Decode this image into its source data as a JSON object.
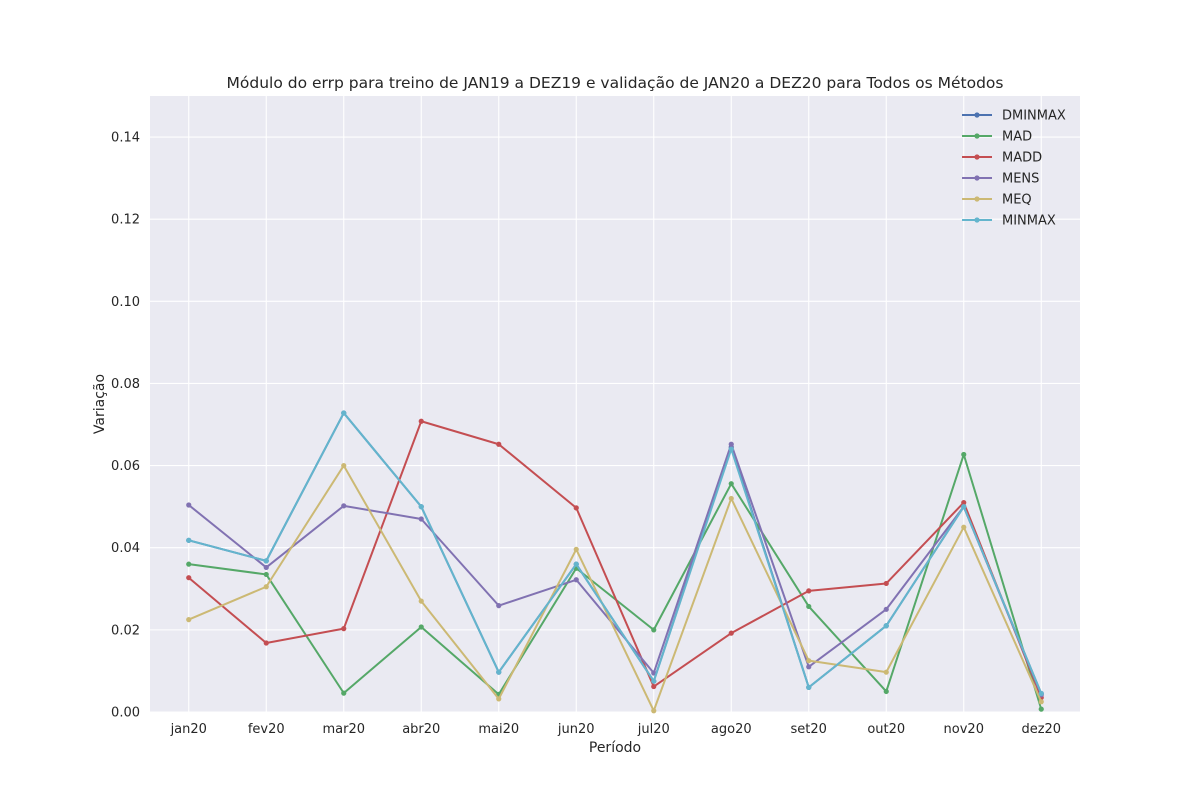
{
  "chart_data": {
    "type": "line",
    "title": "Módulo do errp para treino de JAN19 a DEZ19 e validação de JAN20 a DEZ20 para Todos os Métodos",
    "xlabel": "Período",
    "ylabel": "Variação",
    "categories": [
      "jan20",
      "fev20",
      "mar20",
      "abr20",
      "mai20",
      "jun20",
      "jul20",
      "ago20",
      "set20",
      "out20",
      "nov20",
      "dez20"
    ],
    "ylim": [
      0,
      0.15
    ],
    "yticks": [
      "0.00",
      "0.02",
      "0.04",
      "0.06",
      "0.08",
      "0.10",
      "0.12",
      "0.14"
    ],
    "grid": true,
    "legend_position": "top-right",
    "series": [
      {
        "name": "DMINMAX",
        "color": "#4c72b0",
        "values": [
          0.0418,
          0.0368,
          0.0728,
          0.05,
          0.0097,
          0.036,
          0.0075,
          0.0645,
          0.006,
          0.021,
          0.05,
          0.0045
        ]
      },
      {
        "name": "MAD",
        "color": "#55a868",
        "values": [
          0.036,
          0.0335,
          0.0046,
          0.0207,
          0.0043,
          0.035,
          0.02,
          0.0556,
          0.0257,
          0.005,
          0.0627,
          0.0007
        ]
      },
      {
        "name": "MADD",
        "color": "#c44e52",
        "values": [
          0.0327,
          0.0168,
          0.0203,
          0.0708,
          0.0652,
          0.0497,
          0.0062,
          0.0192,
          0.0295,
          0.0313,
          0.051,
          0.0035
        ]
      },
      {
        "name": "MENS",
        "color": "#8172b2",
        "values": [
          0.0504,
          0.0352,
          0.0502,
          0.047,
          0.0259,
          0.0322,
          0.0095,
          0.0652,
          0.011,
          0.025,
          0.05,
          0.0042
        ]
      },
      {
        "name": "MEQ",
        "color": "#ccb974",
        "values": [
          0.0225,
          0.0305,
          0.06,
          0.027,
          0.0032,
          0.0396,
          0.0003,
          0.052,
          0.0125,
          0.0097,
          0.045,
          0.0025
        ]
      },
      {
        "name": "MINMAX",
        "color": "#64b5cd",
        "values": [
          0.0418,
          0.0368,
          0.0728,
          0.05,
          0.0097,
          0.036,
          0.0075,
          0.064,
          0.006,
          0.021,
          0.05,
          0.0045
        ]
      }
    ]
  }
}
